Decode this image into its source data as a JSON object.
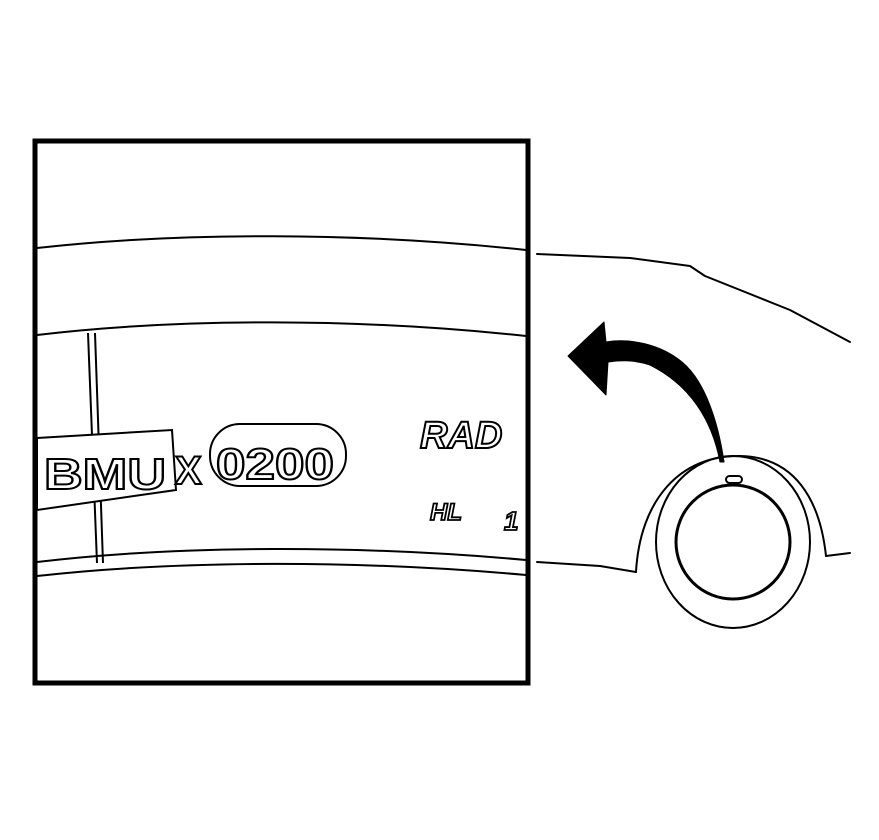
{
  "sidewall_text": {
    "code_prefix": "BMU",
    "code_separator": "X",
    "code_number": "0200",
    "radial_label": "RAD",
    "load_label": "HL",
    "load_digit": "1"
  },
  "colors": {
    "line": "#000000",
    "background": "#ffffff"
  },
  "icons": {
    "pointer": "curved-arrow-icon",
    "marker": "sidewall-marker-icon"
  }
}
